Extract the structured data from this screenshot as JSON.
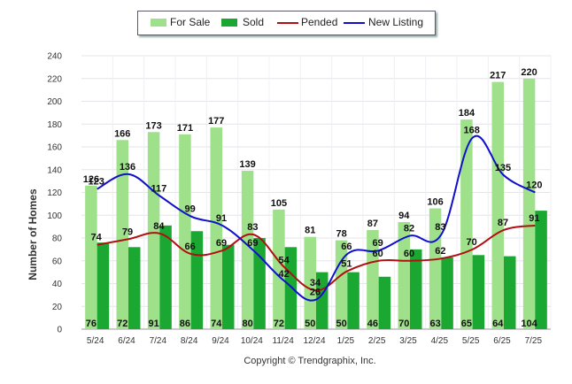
{
  "chart_data": {
    "type": "bar",
    "categories": [
      "5/24",
      "6/24",
      "7/24",
      "8/24",
      "9/24",
      "10/24",
      "11/24",
      "12/24",
      "1/25",
      "2/25",
      "3/25",
      "4/25",
      "5/25",
      "6/25",
      "7/25"
    ],
    "series": [
      {
        "name": "For Sale",
        "kind": "bar",
        "color": "#9fe08a",
        "values": [
          126,
          166,
          173,
          171,
          177,
          139,
          105,
          81,
          78,
          87,
          94,
          106,
          184,
          217,
          220
        ]
      },
      {
        "name": "Sold",
        "kind": "bar",
        "color": "#1aa832",
        "values": [
          76,
          72,
          91,
          86,
          74,
          80,
          72,
          50,
          50,
          46,
          70,
          63,
          65,
          64,
          104
        ]
      },
      {
        "name": "Pended",
        "kind": "line",
        "color": "#b01010",
        "values": [
          74,
          79,
          84,
          66,
          69,
          83,
          54,
          34,
          51,
          60,
          60,
          62,
          70,
          87,
          91
        ]
      },
      {
        "name": "New Listing",
        "kind": "line",
        "color": "#1010cc",
        "values": [
          123,
          136,
          117,
          99,
          91,
          69,
          42,
          26,
          66,
          69,
          82,
          83,
          168,
          135,
          120
        ]
      }
    ],
    "ylabel": "Number of Homes",
    "xlabel": "",
    "ylim": [
      0,
      240
    ],
    "yticks": [
      0,
      20,
      40,
      60,
      80,
      100,
      120,
      140,
      160,
      180,
      200,
      220,
      240
    ],
    "grid": true,
    "legend_position": "top",
    "copyright": "Copyright © Trendgraphix, Inc."
  }
}
